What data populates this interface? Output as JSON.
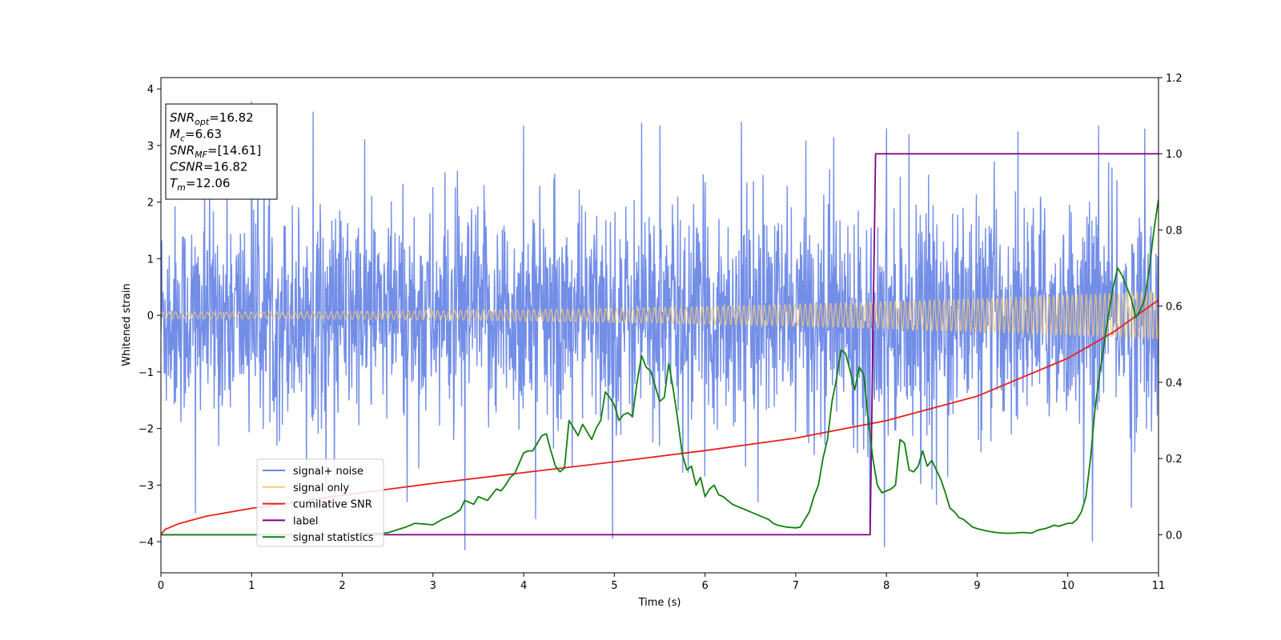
{
  "chart_data": {
    "type": "line",
    "xlabel": "Time (s)",
    "ylabel": "Whitened strain",
    "xlim": [
      0,
      11
    ],
    "ylim_left": [
      -4.55,
      4.2
    ],
    "ylim_right": [
      -0.1,
      1.2
    ],
    "x_ticks": [
      0,
      1,
      2,
      3,
      4,
      5,
      6,
      7,
      8,
      9,
      10,
      11
    ],
    "y_ticks_left": [
      -4,
      -3,
      -2,
      -1,
      0,
      1,
      2,
      3,
      4
    ],
    "y_ticks_right": [
      "0.0",
      "0.2",
      "0.4",
      "0.6",
      "0.8",
      "1.0",
      "1.2"
    ],
    "grid": false,
    "legend_position": "lower-left",
    "info_box": [
      {
        "base": "SNR",
        "sub": "opt",
        "value": "=16.82"
      },
      {
        "base": "M",
        "sub": "c",
        "value": "=6.63"
      },
      {
        "base": "SNR",
        "sub": "MF",
        "value": "=[14.61]"
      },
      {
        "base": "CSNR",
        "sub": "",
        "value": "=16.82"
      },
      {
        "base": "T",
        "sub": "m",
        "value": "=12.06"
      }
    ],
    "series": [
      {
        "name": "signal+ noise",
        "color": "#6b88e6",
        "axis": "left",
        "kind": "noise",
        "typical_range": [
          -2.1,
          2.3
        ],
        "peaks_up": [
          [
            1.0,
            3.78
          ],
          [
            1.68,
            3.6
          ],
          [
            4.0,
            3.35
          ],
          [
            5.3,
            3.4
          ],
          [
            5.5,
            3.35
          ],
          [
            6.4,
            3.42
          ],
          [
            7.42,
            3.15
          ],
          [
            8.0,
            3.3
          ],
          [
            9.45,
            3.25
          ],
          [
            10.34,
            3.35
          ],
          [
            10.85,
            3.3
          ]
        ],
        "peaks_down": [
          [
            0.38,
            -3.5
          ],
          [
            3.35,
            -4.15
          ],
          [
            4.13,
            -3.6
          ],
          [
            4.98,
            -3.95
          ],
          [
            7.82,
            -3.8
          ],
          [
            7.98,
            -4.1
          ],
          [
            8.55,
            -3.35
          ],
          [
            10.27,
            -4.0
          ],
          [
            10.7,
            -3.4
          ]
        ]
      },
      {
        "name": "signal only",
        "color": "#f5c878",
        "axis": "left",
        "kind": "chirp",
        "amplitude_start": 0.06,
        "amplitude_end": 0.42
      },
      {
        "name": "cumilative SNR",
        "color": "#e8201c",
        "axis": "left",
        "x": [
          0,
          0.05,
          0.2,
          0.5,
          1,
          2,
          3,
          4,
          5,
          6,
          7,
          8,
          9,
          10,
          10.5,
          11
        ],
        "y": [
          -3.87,
          -3.78,
          -3.68,
          -3.55,
          -3.41,
          -3.18,
          -2.97,
          -2.78,
          -2.59,
          -2.39,
          -2.17,
          -1.86,
          -1.43,
          -0.76,
          -0.3,
          0.27
        ]
      },
      {
        "name": "label",
        "color": "#800080",
        "axis": "right",
        "x": [
          0,
          7.82,
          7.88,
          11
        ],
        "y": [
          0,
          0,
          1,
          1
        ]
      },
      {
        "name": "signal statistics",
        "color": "#0f7f0f",
        "axis": "right",
        "x": [
          0,
          1,
          2,
          2.5,
          2.7,
          2.8,
          2.9,
          3.0,
          3.1,
          3.2,
          3.3,
          3.35,
          3.4,
          3.45,
          3.5,
          3.6,
          3.7,
          3.75,
          3.8,
          3.85,
          3.9,
          4.0,
          4.05,
          4.1,
          4.15,
          4.2,
          4.25,
          4.3,
          4.35,
          4.4,
          4.45,
          4.5,
          4.55,
          4.6,
          4.65,
          4.7,
          4.75,
          4.8,
          4.85,
          4.9,
          4.95,
          5.0,
          5.05,
          5.1,
          5.15,
          5.2,
          5.25,
          5.3,
          5.35,
          5.4,
          5.45,
          5.5,
          5.55,
          5.6,
          5.65,
          5.7,
          5.75,
          5.8,
          5.85,
          5.9,
          5.95,
          6.0,
          6.05,
          6.1,
          6.15,
          6.2,
          6.3,
          6.35,
          6.4,
          6.5,
          6.6,
          6.7,
          6.75,
          6.8,
          6.9,
          7.0,
          7.05,
          7.1,
          7.15,
          7.2,
          7.25,
          7.3,
          7.35,
          7.4,
          7.45,
          7.5,
          7.55,
          7.6,
          7.65,
          7.7,
          7.75,
          7.8,
          7.85,
          7.9,
          7.95,
          8.0,
          8.05,
          8.1,
          8.15,
          8.2,
          8.25,
          8.3,
          8.35,
          8.4,
          8.45,
          8.5,
          8.55,
          8.6,
          8.65,
          8.7,
          8.75,
          8.8,
          8.85,
          8.9,
          8.95,
          9.0,
          9.1,
          9.2,
          9.3,
          9.4,
          9.5,
          9.6,
          9.65,
          9.7,
          9.75,
          9.8,
          9.85,
          9.9,
          9.95,
          10.0,
          10.05,
          10.1,
          10.15,
          10.2,
          10.25,
          10.3,
          10.35,
          10.4,
          10.45,
          10.5,
          10.55,
          10.6,
          10.65,
          10.7,
          10.75,
          10.8,
          10.85,
          10.9,
          10.95,
          11.0
        ],
        "y": [
          0.0,
          0.0,
          0.0,
          0.005,
          0.02,
          0.03,
          0.028,
          0.026,
          0.04,
          0.05,
          0.065,
          0.09,
          0.085,
          0.08,
          0.1,
          0.09,
          0.12,
          0.115,
          0.13,
          0.15,
          0.16,
          0.215,
          0.22,
          0.22,
          0.24,
          0.26,
          0.265,
          0.22,
          0.18,
          0.165,
          0.175,
          0.3,
          0.28,
          0.26,
          0.29,
          0.27,
          0.25,
          0.28,
          0.3,
          0.375,
          0.36,
          0.34,
          0.3,
          0.315,
          0.32,
          0.31,
          0.4,
          0.47,
          0.44,
          0.43,
          0.39,
          0.35,
          0.36,
          0.45,
          0.38,
          0.3,
          0.21,
          0.17,
          0.18,
          0.13,
          0.15,
          0.1,
          0.12,
          0.13,
          0.105,
          0.1,
          0.08,
          0.075,
          0.07,
          0.06,
          0.05,
          0.04,
          0.03,
          0.025,
          0.02,
          0.018,
          0.02,
          0.04,
          0.06,
          0.1,
          0.13,
          0.2,
          0.25,
          0.35,
          0.41,
          0.485,
          0.475,
          0.43,
          0.38,
          0.44,
          0.42,
          0.3,
          0.2,
          0.13,
          0.11,
          0.115,
          0.12,
          0.13,
          0.25,
          0.24,
          0.17,
          0.165,
          0.18,
          0.22,
          0.18,
          0.195,
          0.17,
          0.145,
          0.11,
          0.07,
          0.06,
          0.045,
          0.04,
          0.03,
          0.02,
          0.016,
          0.01,
          0.006,
          0.004,
          0.004,
          0.006,
          0.004,
          0.01,
          0.014,
          0.016,
          0.02,
          0.025,
          0.022,
          0.026,
          0.03,
          0.03,
          0.04,
          0.06,
          0.1,
          0.2,
          0.33,
          0.42,
          0.5,
          0.58,
          0.65,
          0.7,
          0.68,
          0.65,
          0.62,
          0.57,
          0.59,
          0.62,
          0.7,
          0.8,
          0.88
        ]
      }
    ]
  }
}
